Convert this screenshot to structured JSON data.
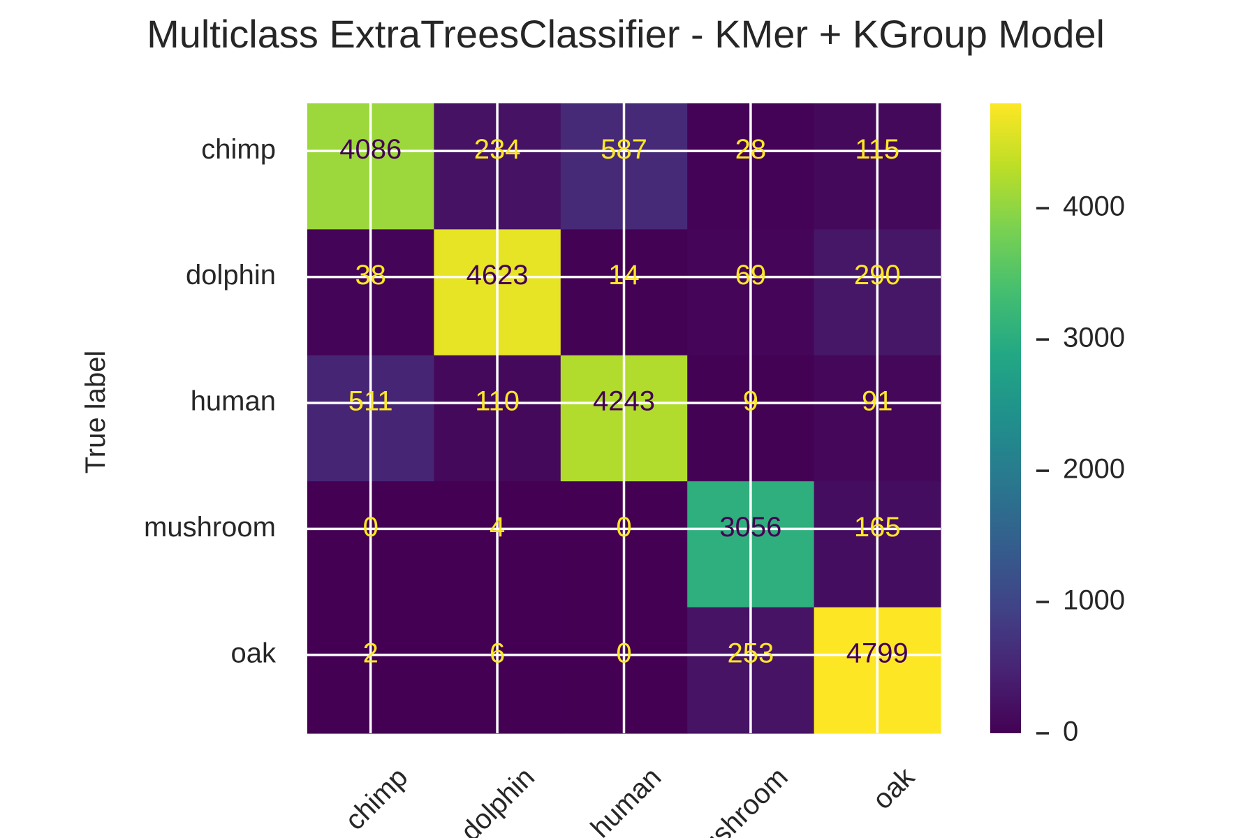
{
  "chart_data": {
    "type": "heatmap",
    "title": "Multiclass ExtraTreesClassifier - KMer + KGroup Model",
    "xlabel": "",
    "ylabel": "True label",
    "row_labels": [
      "chimp",
      "dolphin",
      "human",
      "mushroom",
      "oak"
    ],
    "col_labels": [
      "chimp",
      "dolphin",
      "human",
      "mushroom",
      "oak"
    ],
    "values": [
      [
        4086,
        234,
        587,
        28,
        115
      ],
      [
        38,
        4623,
        14,
        69,
        290
      ],
      [
        511,
        110,
        4243,
        9,
        91
      ],
      [
        0,
        4,
        0,
        3056,
        165
      ],
      [
        2,
        6,
        0,
        253,
        4799
      ]
    ],
    "colormap": "viridis",
    "vmin": 0,
    "vmax": 4799,
    "colorbar_ticks": [
      0,
      1000,
      2000,
      3000,
      4000
    ],
    "grid": true,
    "text_color_dark": "#440154",
    "text_color_light": "#fde725",
    "grid_color": "#ffffff"
  }
}
